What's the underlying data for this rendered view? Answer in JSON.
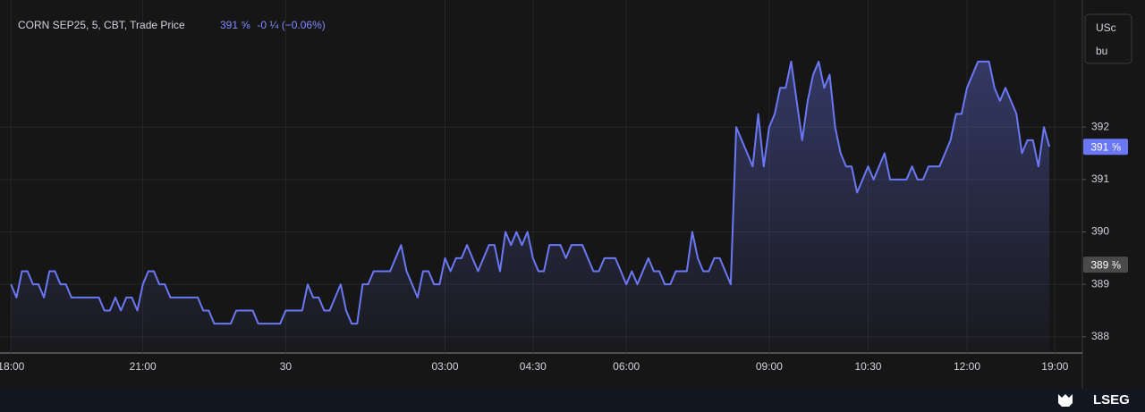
{
  "chart_data": {
    "type": "line",
    "title": "CORN SEP25, 5, CBT, Trade Price",
    "quote": "391 ⅝",
    "change": "-0 ¼ (−0.06%)",
    "unit": [
      "USc",
      "bu"
    ],
    "brand": "LSEG",
    "color": "#6b78f5",
    "grid": true,
    "values": [
      389,
      388.75,
      389.25,
      389.25,
      389,
      389,
      388.75,
      389.25,
      389.25,
      389,
      389,
      388.75,
      388.75,
      388.75,
      388.75,
      388.75,
      388.75,
      388.5,
      388.5,
      388.75,
      388.5,
      388.75,
      388.75,
      388.5,
      389,
      389.25,
      389.25,
      389,
      389,
      388.75,
      388.75,
      388.75,
      388.75,
      388.75,
      388.75,
      388.5,
      388.5,
      388.25,
      388.25,
      388.25,
      388.25,
      388.5,
      388.5,
      388.5,
      388.5,
      388.25,
      388.25,
      388.25,
      388.25,
      388.25,
      388.5,
      388.5,
      388.5,
      388.5,
      389,
      388.75,
      388.75,
      388.5,
      388.5,
      388.75,
      389,
      388.5,
      388.25,
      388.25,
      389,
      389,
      389.25,
      389.25,
      389.25,
      389.25,
      389.5,
      389.75,
      389.25,
      389,
      388.75,
      389.25,
      389.25,
      389,
      389,
      389.5,
      389.25,
      389.5,
      389.5,
      389.75,
      389.5,
      389.25,
      389.5,
      389.75,
      389.75,
      389.25,
      390,
      389.75,
      390,
      389.75,
      390,
      389.5,
      389.25,
      389.25,
      389.75,
      389.75,
      389.75,
      389.5,
      389.75,
      389.75,
      389.75,
      389.5,
      389.25,
      389.25,
      389.5,
      389.5,
      389.5,
      389.25,
      389,
      389.25,
      389,
      389.25,
      389.5,
      389.25,
      389.25,
      389,
      389,
      389.25,
      389.25,
      389.25,
      390,
      389.5,
      389.25,
      389.25,
      389.5,
      389.5,
      389.25,
      389,
      392,
      391.75,
      391.5,
      391.25,
      392.25,
      391.25,
      392,
      392.25,
      392.75,
      392.75,
      393.25,
      392.5,
      391.75,
      392.5,
      393,
      393.25,
      392.75,
      393,
      392,
      391.5,
      391.25,
      391.25,
      390.75,
      391,
      391.25,
      391,
      391.25,
      391.5,
      391,
      391,
      391,
      391,
      391.25,
      391,
      391,
      391.25,
      391.25,
      391.25,
      391.5,
      391.75,
      392.25,
      392.25,
      392.75,
      393,
      393.25,
      393.25,
      393.25,
      392.75,
      392.5,
      392.75,
      392.5,
      392.25,
      391.5,
      391.75,
      391.75,
      391.25,
      392,
      391.625
    ],
    "xlim": [
      -2,
      195
    ],
    "xticks": [
      {
        "value": 0,
        "label": "18:00"
      },
      {
        "value": 24,
        "label": "21:00"
      },
      {
        "value": 50,
        "label": "30"
      },
      {
        "value": 79,
        "label": "03:00"
      },
      {
        "value": 95,
        "label": "04:30"
      },
      {
        "value": 112,
        "label": "06:00"
      },
      {
        "value": 138,
        "label": "09:00"
      },
      {
        "value": 156,
        "label": "10:30"
      },
      {
        "value": 174,
        "label": "12:00"
      },
      {
        "value": 190,
        "label": "19:00"
      }
    ],
    "ylim": [
      387.69,
      394.22
    ],
    "yticks": [
      388,
      389,
      390,
      391,
      392
    ],
    "price_tags": [
      {
        "value": 391.625,
        "label": "391 ⅝",
        "color": "#6b78f5"
      },
      {
        "value": 389.375,
        "label": "389 ⅜",
        "color": "#4a4a4a"
      }
    ]
  }
}
